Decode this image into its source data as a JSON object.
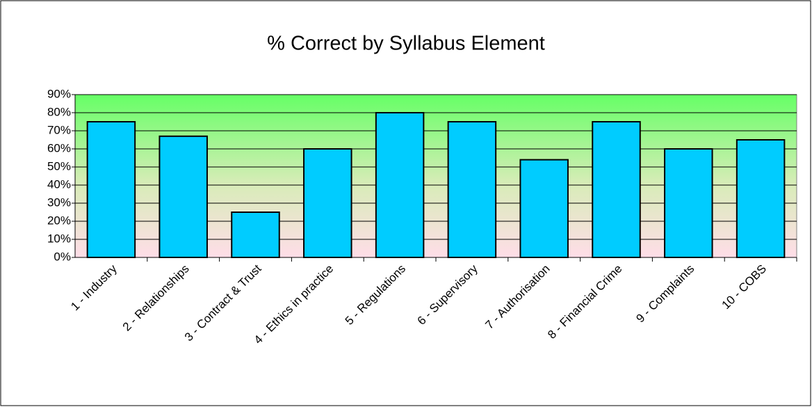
{
  "chart_data": {
    "type": "bar",
    "title": "% Correct by Syllabus Element",
    "categories": [
      "1 - Industry",
      "2 - Relationships",
      "3 - Contract & Trust",
      "4 - Ethics in practice",
      "5 - Regulations",
      "6 - Supervisory",
      "7 - Authorisation",
      "8 - Financial Crime",
      "9 - Complaints",
      "10 - COBS"
    ],
    "values": [
      75,
      67,
      25,
      60,
      80,
      75,
      54,
      75,
      60,
      65
    ],
    "color": "#00ccff",
    "ylim": [
      0,
      90
    ],
    "yticks": [
      {
        "value": 0,
        "label": "0%"
      },
      {
        "value": 10,
        "label": "10%"
      },
      {
        "value": 20,
        "label": "20%"
      },
      {
        "value": 30,
        "label": "30%"
      },
      {
        "value": 40,
        "label": "40%"
      },
      {
        "value": 50,
        "label": "50%"
      },
      {
        "value": 60,
        "label": "60%"
      },
      {
        "value": 70,
        "label": "70%"
      },
      {
        "value": 80,
        "label": "80%"
      },
      {
        "value": 90,
        "label": "90%"
      }
    ],
    "grid": true
  }
}
